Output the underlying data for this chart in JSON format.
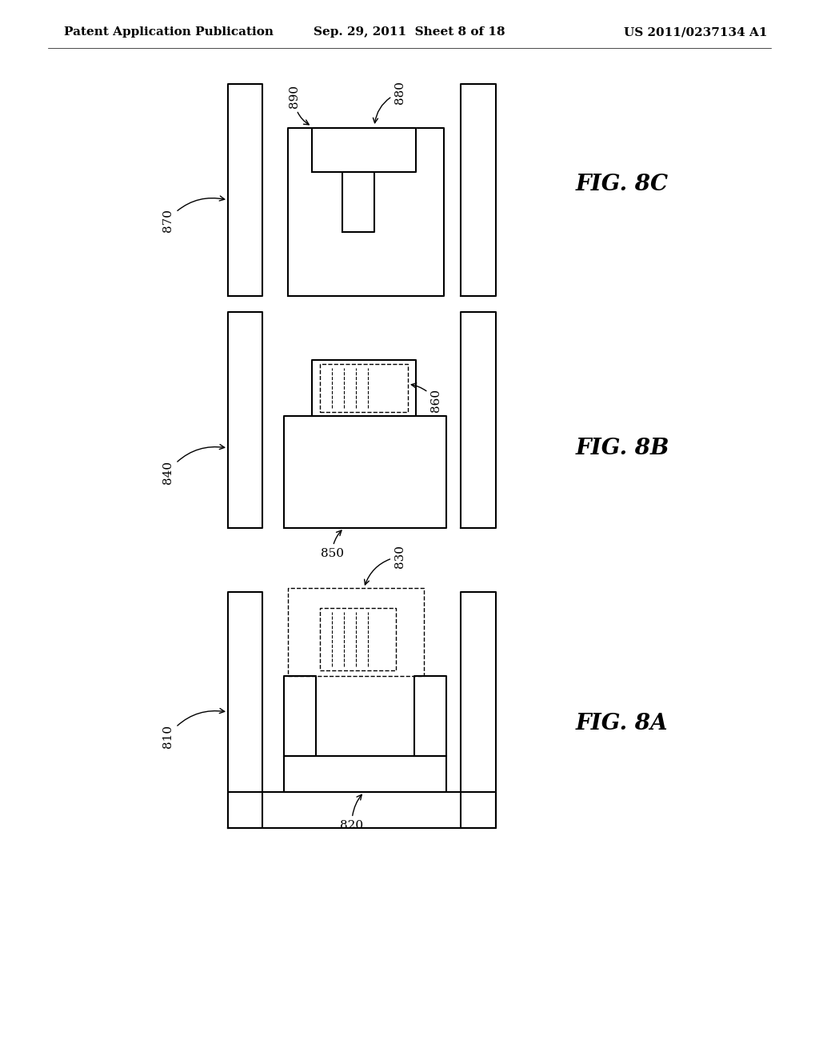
{
  "background_color": "#ffffff",
  "header_left": "Patent Application Publication",
  "header_center": "Sep. 29, 2011  Sheet 8 of 18",
  "header_right": "US 2011/0237134 A1",
  "lw": 1.5,
  "lw_dash": 1.0
}
